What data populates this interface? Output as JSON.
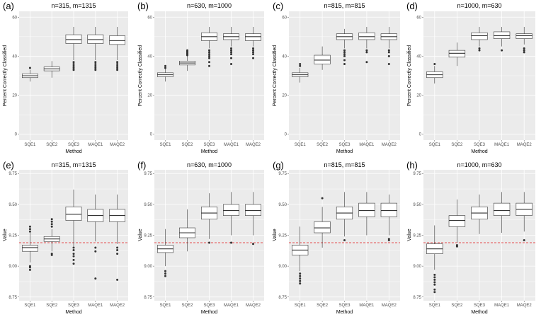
{
  "colors": {
    "panel_bg": "#ebebeb",
    "grid": "#ffffff",
    "box_fill": "#ffffff",
    "box_line": "#333333",
    "outlier": "#333333",
    "ref_line": "#e41a1c"
  },
  "chart_data": [
    {
      "label": "(a)",
      "type": "boxplot",
      "title": "n=315, m=1315",
      "xlabel": "Method",
      "ylabel": "Percent Correctly Classified",
      "ylim": [
        -3,
        63
      ],
      "yticks": [
        0,
        20,
        40,
        60
      ],
      "ytick_labels": [
        "0",
        "20",
        "40",
        "60"
      ],
      "categories": [
        "SQE1",
        "SQE2",
        "SQE3",
        "MAQE1",
        "MAQE2"
      ],
      "boxes": [
        {
          "lw": 27,
          "q1": 29,
          "med": 30,
          "q3": 31,
          "uw": 33,
          "outliers": [
            34
          ]
        },
        {
          "lw": 29,
          "q1": 32.5,
          "med": 33.5,
          "q3": 34.5,
          "uw": 37.5,
          "outliers": []
        },
        {
          "lw": 38,
          "q1": 46.5,
          "med": 48.5,
          "q3": 51,
          "uw": 55,
          "outliers": [
            33,
            34,
            35,
            36,
            37
          ]
        },
        {
          "lw": 38,
          "q1": 46.5,
          "med": 48.5,
          "q3": 51,
          "uw": 55,
          "outliers": [
            33,
            34,
            35,
            36,
            37
          ]
        },
        {
          "lw": 38,
          "q1": 46,
          "med": 48,
          "q3": 50.5,
          "uw": 55,
          "outliers": [
            33,
            34,
            35,
            36,
            37
          ]
        }
      ]
    },
    {
      "label": "(b)",
      "type": "boxplot",
      "title": "n=630, m=1000",
      "xlabel": "Method",
      "ylabel": "Percent Correctly Classified",
      "ylim": [
        -3,
        63
      ],
      "yticks": [
        0,
        20,
        40,
        60
      ],
      "ytick_labels": [
        "0",
        "20",
        "40",
        "60"
      ],
      "categories": [
        "SQE1",
        "SQE2",
        "SQE3",
        "MAQE1",
        "MAQE2"
      ],
      "boxes": [
        {
          "lw": 27,
          "q1": 29.5,
          "med": 30.5,
          "q3": 31.5,
          "uw": 33.5,
          "outliers": [
            34,
            35
          ]
        },
        {
          "lw": 32.5,
          "q1": 35.5,
          "med": 36.5,
          "q3": 37.5,
          "uw": 40,
          "outliers": [
            40.5,
            41,
            41.5,
            42,
            42.5,
            43
          ]
        },
        {
          "lw": 44,
          "q1": 48,
          "med": 50,
          "q3": 52,
          "uw": 55,
          "outliers": [
            35,
            37,
            39,
            40,
            41,
            42,
            43
          ]
        },
        {
          "lw": 45,
          "q1": 48.5,
          "med": 50,
          "q3": 51.5,
          "uw": 55,
          "outliers": [
            36,
            39,
            41,
            42,
            43,
            44
          ]
        },
        {
          "lw": 45,
          "q1": 48,
          "med": 50,
          "q3": 51.5,
          "uw": 55,
          "outliers": [
            39,
            41,
            42,
            43,
            44
          ]
        }
      ]
    },
    {
      "label": "(c)",
      "type": "boxplot",
      "title": "n=815, m=815",
      "xlabel": "Method",
      "ylabel": "Percent Correctly Classified",
      "ylim": [
        -3,
        63
      ],
      "yticks": [
        0,
        20,
        40,
        60
      ],
      "ytick_labels": [
        "0",
        "20",
        "40",
        "60"
      ],
      "categories": [
        "SQE1",
        "SQE2",
        "SQE3",
        "MAQE1",
        "MAQE2"
      ],
      "boxes": [
        {
          "lw": 26.5,
          "q1": 29.5,
          "med": 30.5,
          "q3": 31.5,
          "uw": 34,
          "outliers": [
            35,
            36
          ]
        },
        {
          "lw": 33,
          "q1": 36,
          "med": 38,
          "q3": 40.5,
          "uw": 45,
          "outliers": []
        },
        {
          "lw": 44,
          "q1": 48.5,
          "med": 50,
          "q3": 51.5,
          "uw": 54,
          "outliers": [
            36,
            38,
            40,
            41,
            42,
            43
          ]
        },
        {
          "lw": 44,
          "q1": 48.5,
          "med": 50,
          "q3": 52,
          "uw": 55,
          "outliers": [
            37,
            42,
            43
          ]
        },
        {
          "lw": 44,
          "q1": 48.5,
          "med": 50,
          "q3": 51.5,
          "uw": 55,
          "outliers": [
            36,
            40,
            42,
            43
          ]
        }
      ]
    },
    {
      "label": "(d)",
      "type": "boxplot",
      "title": "n=1000, m=630",
      "xlabel": "Method",
      "ylabel": "Percent Correctly Classified",
      "ylim": [
        -3,
        63
      ],
      "yticks": [
        0,
        20,
        40,
        60
      ],
      "ytick_labels": [
        "0",
        "20",
        "40",
        "60"
      ],
      "categories": [
        "SQE1",
        "SQE2",
        "SQE3",
        "MAQE1",
        "MAQE2"
      ],
      "boxes": [
        {
          "lw": 26,
          "q1": 29,
          "med": 30.5,
          "q3": 32,
          "uw": 35,
          "outliers": [
            36
          ]
        },
        {
          "lw": 35,
          "q1": 39.5,
          "med": 41.5,
          "q3": 43,
          "uw": 47,
          "outliers": []
        },
        {
          "lw": 45,
          "q1": 48.5,
          "med": 50.5,
          "q3": 52,
          "uw": 55,
          "outliers": [
            43,
            44
          ]
        },
        {
          "lw": 45,
          "q1": 49,
          "med": 50.5,
          "q3": 52.5,
          "uw": 55,
          "outliers": [
            43
          ]
        },
        {
          "lw": 46,
          "q1": 49,
          "med": 50.5,
          "q3": 51.5,
          "uw": 55,
          "outliers": [
            42,
            43,
            44
          ]
        }
      ]
    },
    {
      "label": "(e)",
      "type": "boxplot",
      "title": "n=315, m=1315",
      "xlabel": "Method",
      "ylabel": "Value",
      "ylim": [
        8.72,
        9.78
      ],
      "yticks": [
        8.75,
        9.0,
        9.25,
        9.5,
        9.75
      ],
      "ytick_labels": [
        "8.75",
        "9.00",
        "9.25",
        "9.50",
        "9.75"
      ],
      "ref_line": 9.19,
      "categories": [
        "SQE1",
        "SQE2",
        "SQE3",
        "MAQE1",
        "MAQE2"
      ],
      "boxes": [
        {
          "lw": 9.03,
          "q1": 9.12,
          "med": 9.15,
          "q3": 9.17,
          "uw": 9.27,
          "outliers": [
            8.97,
            8.99,
            9.0,
            9.28,
            9.3,
            9.32
          ]
        },
        {
          "lw": 9.12,
          "q1": 9.2,
          "med": 9.22,
          "q3": 9.24,
          "uw": 9.3,
          "outliers": [
            9.09,
            9.1,
            9.32,
            9.34,
            9.36,
            9.38
          ]
        },
        {
          "lw": 9.16,
          "q1": 9.37,
          "med": 9.42,
          "q3": 9.48,
          "uw": 9.62,
          "outliers": [
            9.02,
            9.05,
            9.08,
            9.1,
            9.13,
            9.15
          ]
        },
        {
          "lw": 9.2,
          "q1": 9.36,
          "med": 9.41,
          "q3": 9.46,
          "uw": 9.58,
          "outliers": [
            8.9,
            9.12,
            9.15
          ]
        },
        {
          "lw": 9.18,
          "q1": 9.36,
          "med": 9.41,
          "q3": 9.46,
          "uw": 9.58,
          "outliers": [
            8.89,
            9.1,
            9.13,
            9.15
          ]
        }
      ]
    },
    {
      "label": "(f)",
      "type": "boxplot",
      "title": "n=630, m=1000",
      "xlabel": "Method",
      "ylabel": "Value",
      "ylim": [
        8.72,
        9.78
      ],
      "yticks": [
        8.75,
        9.0,
        9.25,
        9.5,
        9.75
      ],
      "ytick_labels": [
        "8.75",
        "9.00",
        "9.25",
        "9.50",
        "9.75"
      ],
      "ref_line": 9.19,
      "categories": [
        "SQE1",
        "SQE2",
        "SQE3",
        "MAQE1",
        "MAQE2"
      ],
      "boxes": [
        {
          "lw": 9.0,
          "q1": 9.11,
          "med": 9.14,
          "q3": 9.17,
          "uw": 9.3,
          "outliers": [
            8.92,
            8.94,
            8.96
          ]
        },
        {
          "lw": 9.12,
          "q1": 9.23,
          "med": 9.27,
          "q3": 9.31,
          "uw": 9.46,
          "outliers": []
        },
        {
          "lw": 9.22,
          "q1": 9.38,
          "med": 9.43,
          "q3": 9.48,
          "uw": 9.59,
          "outliers": [
            9.19
          ]
        },
        {
          "lw": 9.25,
          "q1": 9.41,
          "med": 9.45,
          "q3": 9.5,
          "uw": 9.6,
          "outliers": [
            9.19
          ]
        },
        {
          "lw": 9.25,
          "q1": 9.41,
          "med": 9.45,
          "q3": 9.5,
          "uw": 9.6,
          "outliers": [
            9.18
          ]
        }
      ]
    },
    {
      "label": "(g)",
      "type": "boxplot",
      "title": "n=815, m=815",
      "xlabel": "Method",
      "ylabel": "Value",
      "ylim": [
        8.72,
        9.78
      ],
      "yticks": [
        8.75,
        9.0,
        9.25,
        9.5,
        9.75
      ],
      "ytick_labels": [
        "8.75",
        "9.00",
        "9.25",
        "9.50",
        "9.75"
      ],
      "ref_line": 9.19,
      "categories": [
        "SQE1",
        "SQE2",
        "SQE3",
        "MAQE1",
        "MAQE2"
      ],
      "boxes": [
        {
          "lw": 8.96,
          "q1": 9.09,
          "med": 9.13,
          "q3": 9.17,
          "uw": 9.32,
          "outliers": [
            8.86,
            8.88,
            8.9,
            8.92,
            8.94
          ]
        },
        {
          "lw": 9.15,
          "q1": 9.27,
          "med": 9.31,
          "q3": 9.36,
          "uw": 9.48,
          "outliers": [
            9.55
          ]
        },
        {
          "lw": 9.24,
          "q1": 9.38,
          "med": 9.43,
          "q3": 9.48,
          "uw": 9.6,
          "outliers": [
            9.21
          ]
        },
        {
          "lw": 9.25,
          "q1": 9.4,
          "med": 9.45,
          "q3": 9.51,
          "uw": 9.6,
          "outliers": []
        },
        {
          "lw": 9.25,
          "q1": 9.4,
          "med": 9.45,
          "q3": 9.51,
          "uw": 9.58,
          "outliers": [
            9.21,
            9.22
          ]
        }
      ]
    },
    {
      "label": "(h)",
      "type": "boxplot",
      "title": "n=1000, m=630",
      "xlabel": "Method",
      "ylabel": "Value",
      "ylim": [
        8.72,
        9.78
      ],
      "yticks": [
        8.75,
        9.0,
        9.25,
        9.5,
        9.75
      ],
      "ytick_labels": [
        "8.75",
        "9.00",
        "9.25",
        "9.50",
        "9.75"
      ],
      "ref_line": 9.19,
      "categories": [
        "SQE1",
        "SQE2",
        "SQE3",
        "MAQE1",
        "MAQE2"
      ],
      "boxes": [
        {
          "lw": 8.97,
          "q1": 9.1,
          "med": 9.14,
          "q3": 9.18,
          "uw": 9.33,
          "outliers": [
            8.79,
            8.81,
            8.85,
            8.87,
            8.89,
            8.91,
            8.93
          ]
        },
        {
          "lw": 9.19,
          "q1": 9.32,
          "med": 9.37,
          "q3": 9.41,
          "uw": 9.54,
          "outliers": [
            9.16,
            9.17
          ]
        },
        {
          "lw": 9.26,
          "q1": 9.38,
          "med": 9.43,
          "q3": 9.48,
          "uw": 9.58,
          "outliers": []
        },
        {
          "lw": 9.27,
          "q1": 9.41,
          "med": 9.45,
          "q3": 9.51,
          "uw": 9.6,
          "outliers": []
        },
        {
          "lw": 9.28,
          "q1": 9.41,
          "med": 9.46,
          "q3": 9.51,
          "uw": 9.6,
          "outliers": [
            9.21
          ]
        }
      ]
    }
  ]
}
